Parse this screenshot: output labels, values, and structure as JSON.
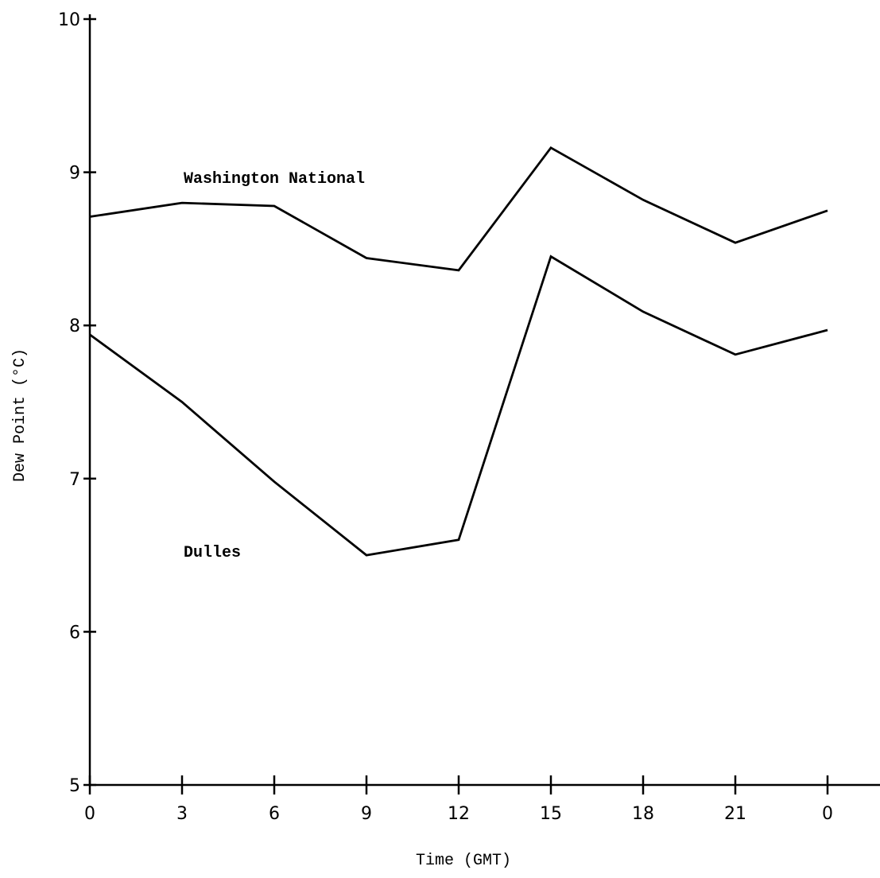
{
  "chart_data": {
    "type": "line",
    "title": "",
    "xlabel": "Time (GMT)",
    "ylabel": "Dew Point (°C)",
    "categories": [
      "0",
      "3",
      "6",
      "9",
      "12",
      "15",
      "18",
      "21",
      "0"
    ],
    "yticks": [
      "5",
      "6",
      "7",
      "8",
      "9",
      "10"
    ],
    "ylim": [
      5,
      10
    ],
    "grid": false,
    "series": [
      {
        "name": "Washington National",
        "values": [
          8.71,
          8.8,
          8.78,
          8.44,
          8.36,
          9.16,
          8.82,
          8.54,
          8.75
        ]
      },
      {
        "name": "Dulles",
        "values": [
          7.94,
          7.5,
          6.98,
          6.5,
          6.6,
          8.45,
          8.09,
          7.81,
          7.97
        ]
      }
    ]
  }
}
